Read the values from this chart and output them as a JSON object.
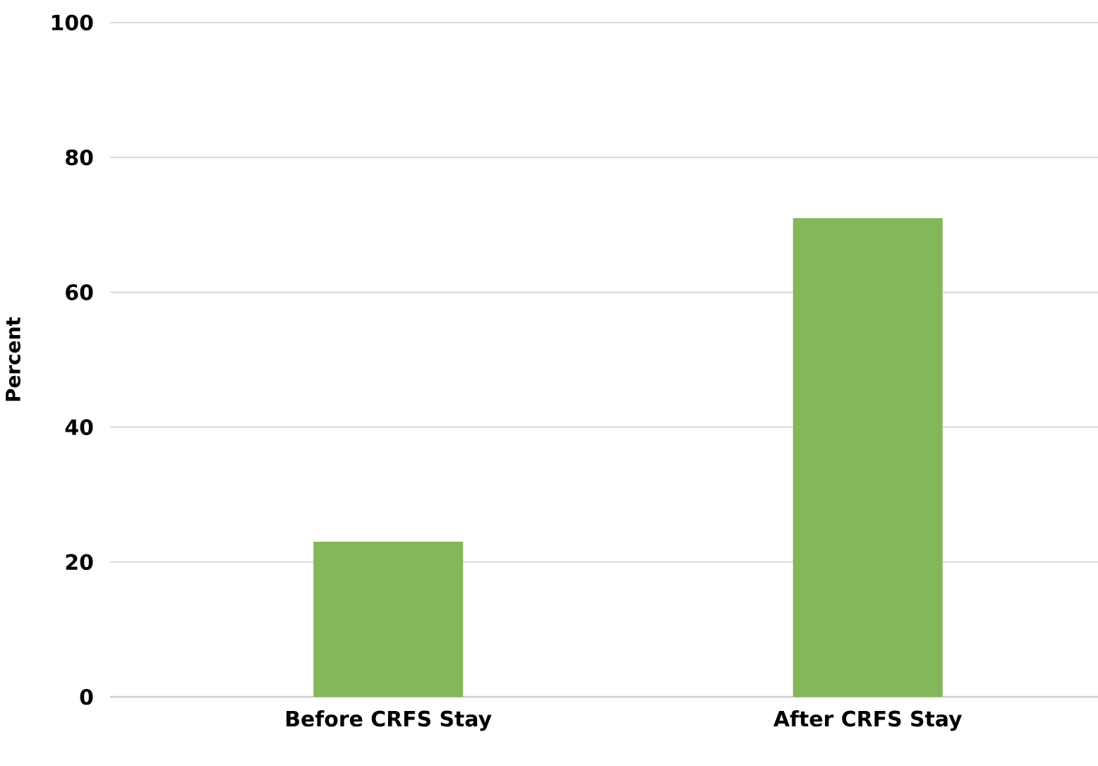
{
  "chart_data": {
    "type": "bar",
    "ylabel": "Percent",
    "categories": [
      "Before CRFS Stay",
      "After CRFS Stay"
    ],
    "values": [
      23,
      71
    ],
    "color": "#82b75a",
    "ylim": [
      0,
      100
    ],
    "yticks": [
      0,
      20,
      40,
      60,
      80,
      100
    ],
    "grid": "y"
  }
}
